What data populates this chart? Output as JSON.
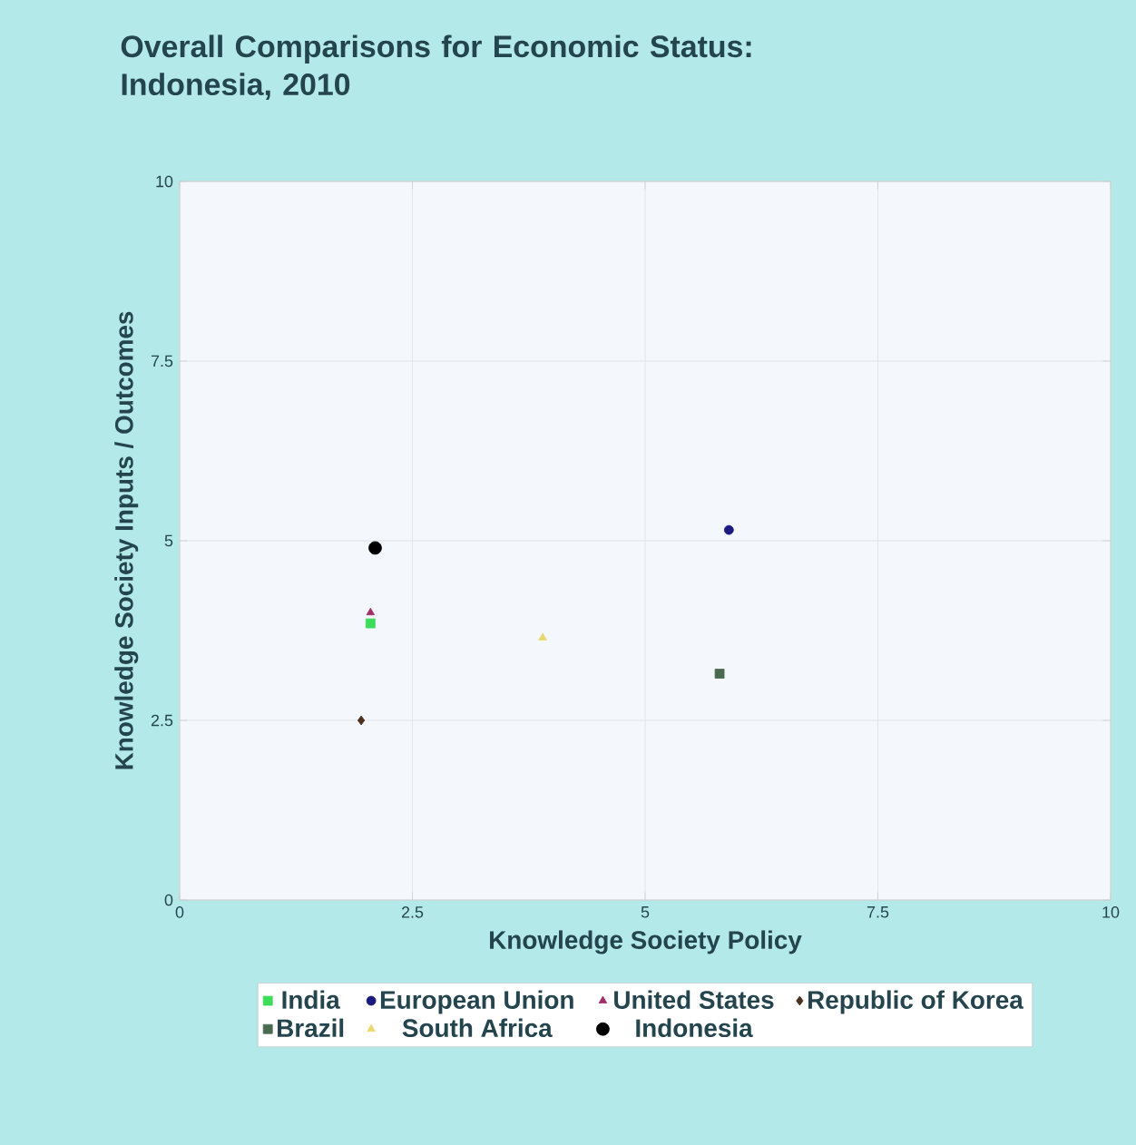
{
  "chart_data": {
    "type": "scatter",
    "title": "Overall Comparisons for Economic Status: Indonesia, 2010",
    "xlabel": "Knowledge Society Policy",
    "ylabel": "Knowledge Society Inputs / Outcomes",
    "xlim": [
      0,
      10
    ],
    "ylim": [
      0,
      10
    ],
    "xticks": [
      0,
      2.5,
      5,
      7.5,
      10
    ],
    "yticks": [
      0,
      2.5,
      5,
      7.5,
      10
    ],
    "grid": true,
    "legend": "bottom",
    "series": [
      {
        "name": "India",
        "color": "#3ddc5a",
        "x": [
          2.05
        ],
        "values": [
          3.85
        ],
        "marker": "square"
      },
      {
        "name": "European Union",
        "color": "#1a1a80",
        "x": [
          5.9
        ],
        "values": [
          5.15
        ],
        "marker": "circle"
      },
      {
        "name": "United States",
        "color": "#a0306a",
        "x": [
          2.05
        ],
        "values": [
          4.0
        ],
        "marker": "triangle"
      },
      {
        "name": "Republic of Korea",
        "color": "#4a3020",
        "x": [
          1.95
        ],
        "values": [
          2.5
        ],
        "marker": "diamond"
      },
      {
        "name": "Brazil",
        "color": "#4a6a50",
        "x": [
          5.8
        ],
        "values": [
          3.15
        ],
        "marker": "square"
      },
      {
        "name": "South Africa",
        "color": "#e8d870",
        "x": [
          3.9
        ],
        "values": [
          3.65
        ],
        "marker": "triangle"
      },
      {
        "name": "Indonesia",
        "color": "#000000",
        "x": [
          2.1
        ],
        "values": [
          4.9
        ],
        "marker": "circle"
      }
    ]
  }
}
